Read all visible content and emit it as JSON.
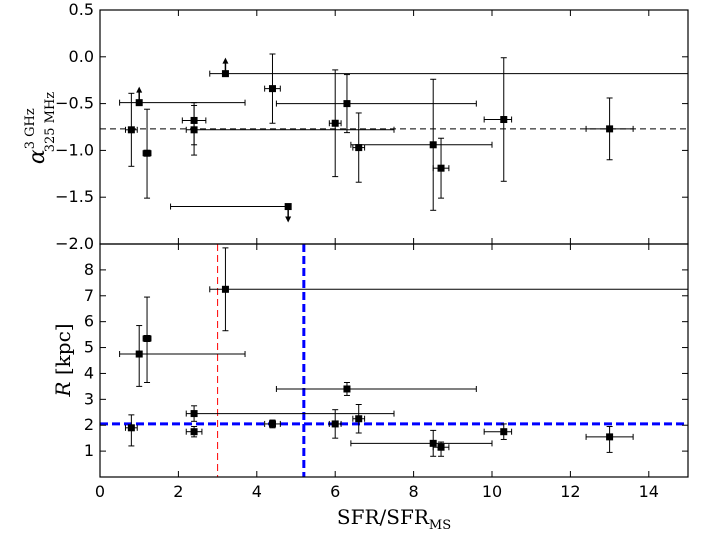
{
  "chart_data": [
    {
      "type": "scatter",
      "panel": "top",
      "ylabel": "α 3 GHz 325 MHz",
      "ylabel_parts": {
        "main": "α",
        "sup": "3 GHz",
        "sub": "325 MHz"
      },
      "xlim": [
        0,
        15
      ],
      "ylim": [
        -2.0,
        0.5
      ],
      "yticks": [
        "0.5",
        "0.0",
        "−0.5",
        "−1.0",
        "−1.5",
        "−2.0"
      ],
      "ytick_values": [
        0.5,
        0.0,
        -0.5,
        -1.0,
        -1.5,
        -2.0
      ],
      "hline": {
        "y": -0.77,
        "style": "dashed",
        "color": "#000000"
      },
      "points": [
        {
          "x": 0.8,
          "y": -0.78,
          "xerr": [
            0.15,
            0.15
          ],
          "yerr": [
            0.39,
            0.39
          ]
        },
        {
          "x": 1.0,
          "y": -0.49,
          "xerr": [
            0.5,
            2.7
          ],
          "limit": "lower"
        },
        {
          "x": 1.2,
          "y": -1.03,
          "xerr": [
            0.1,
            0.1
          ],
          "yerr": [
            0.48,
            0.47
          ]
        },
        {
          "x": 2.4,
          "y": -0.68,
          "xerr": [
            0.3,
            0.3
          ],
          "yerr": [
            0.26,
            0.19
          ]
        },
        {
          "x": 2.4,
          "y": -0.78,
          "xerr": [
            0.2,
            5.1
          ],
          "yerr": [
            0.27,
            0.26
          ]
        },
        {
          "x": 3.2,
          "y": -0.18,
          "xerr": [
            0.4,
            11.8
          ],
          "limit": "lower"
        },
        {
          "x": 4.4,
          "y": -0.34,
          "xerr": [
            0.2,
            0.2
          ],
          "yerr": [
            0.37,
            0.37
          ]
        },
        {
          "x": 4.8,
          "y": -1.6,
          "xerr": [
            3.0,
            0.0
          ],
          "limit": "upper"
        },
        {
          "x": 6.0,
          "y": -0.71,
          "xerr": [
            0.15,
            0.15
          ],
          "yerr": [
            0.57,
            0.57
          ]
        },
        {
          "x": 6.3,
          "y": -0.5,
          "xerr": [
            1.8,
            3.3
          ],
          "yerr": [
            0.31,
            0.31
          ]
        },
        {
          "x": 6.6,
          "y": -0.97,
          "xerr": [
            0.15,
            0.15
          ],
          "yerr": [
            0.37,
            0.37
          ]
        },
        {
          "x": 8.5,
          "y": -0.94,
          "xerr": [
            2.1,
            1.5
          ],
          "yerr": [
            0.7,
            0.7
          ]
        },
        {
          "x": 8.7,
          "y": -1.19,
          "xerr": [
            0.2,
            0.2
          ],
          "yerr": [
            0.32,
            0.32
          ]
        },
        {
          "x": 10.3,
          "y": -0.67,
          "xerr": [
            0.5,
            0.2
          ],
          "yerr": [
            0.66,
            0.66
          ]
        },
        {
          "x": 13.0,
          "y": -0.77,
          "xerr": [
            0.6,
            0.6
          ],
          "yerr": [
            0.33,
            0.33
          ]
        }
      ],
      "grid": false
    },
    {
      "type": "scatter",
      "panel": "bottom",
      "xlabel": "SFR/SFR MS",
      "xlabel_parts": {
        "main": "SFR/SFR",
        "sub": "MS"
      },
      "ylabel": "R [kpc]",
      "ylabel_parts": {
        "italic": "R",
        "rest": " [kpc]"
      },
      "xlim": [
        0,
        15
      ],
      "ylim": [
        0,
        9
      ],
      "xticks": [
        "0",
        "2",
        "4",
        "6",
        "8",
        "10",
        "12",
        "14"
      ],
      "xtick_values": [
        0,
        2,
        4,
        6,
        8,
        10,
        12,
        14
      ],
      "yticks": [
        "1",
        "2",
        "3",
        "4",
        "5",
        "6",
        "7",
        "8"
      ],
      "ytick_values": [
        1,
        2,
        3,
        4,
        5,
        6,
        7,
        8
      ],
      "hline": {
        "y": 2.05,
        "style": "dashed",
        "color": "#0000ff"
      },
      "vlines": [
        {
          "x": 5.2,
          "style": "dashed",
          "color": "#0000ff"
        },
        {
          "x": 3.0,
          "style": "dashed",
          "color": "#ff0000"
        }
      ],
      "points": [
        {
          "x": 0.8,
          "y": 1.9,
          "xerr": [
            0.15,
            0.15
          ],
          "yerr": [
            0.7,
            0.5
          ]
        },
        {
          "x": 1.0,
          "y": 4.75,
          "xerr": [
            0.5,
            2.7
          ],
          "yerr": [
            1.25,
            1.1
          ]
        },
        {
          "x": 1.2,
          "y": 5.35,
          "xerr": [
            0.1,
            0.1
          ],
          "yerr": [
            1.7,
            1.6
          ]
        },
        {
          "x": 2.4,
          "y": 1.75,
          "xerr": [
            0.2,
            0.2
          ],
          "yerr": [
            0.2,
            0.2
          ]
        },
        {
          "x": 2.4,
          "y": 2.45,
          "xerr": [
            0.2,
            5.1
          ],
          "yerr": [
            0.3,
            0.3
          ]
        },
        {
          "x": 3.2,
          "y": 7.25,
          "xerr": [
            0.4,
            11.8
          ],
          "yerr": [
            1.6,
            1.6
          ]
        },
        {
          "x": 4.4,
          "y": 2.05,
          "xerr": [
            0.2,
            0.2
          ],
          "yerr": [
            0.15,
            0.15
          ]
        },
        {
          "x": 6.0,
          "y": 2.05,
          "xerr": [
            0.15,
            0.15
          ],
          "yerr": [
            0.55,
            0.55
          ]
        },
        {
          "x": 6.3,
          "y": 3.4,
          "xerr": [
            1.8,
            3.3
          ],
          "yerr": [
            0.25,
            0.25
          ]
        },
        {
          "x": 6.6,
          "y": 2.25,
          "xerr": [
            0.15,
            0.15
          ],
          "yerr": [
            0.55,
            0.55
          ]
        },
        {
          "x": 8.5,
          "y": 1.3,
          "xerr": [
            2.1,
            1.5
          ],
          "yerr": [
            0.5,
            0.5
          ]
        },
        {
          "x": 8.7,
          "y": 1.15,
          "xerr": [
            0.2,
            0.2
          ],
          "yerr": [
            0.35,
            0.2
          ]
        },
        {
          "x": 10.3,
          "y": 1.75,
          "xerr": [
            0.5,
            0.2
          ],
          "yerr": [
            0.3,
            0.3
          ]
        },
        {
          "x": 13.0,
          "y": 1.55,
          "xerr": [
            0.6,
            0.6
          ],
          "yerr": [
            0.6,
            0.4
          ]
        }
      ],
      "grid": false
    }
  ]
}
